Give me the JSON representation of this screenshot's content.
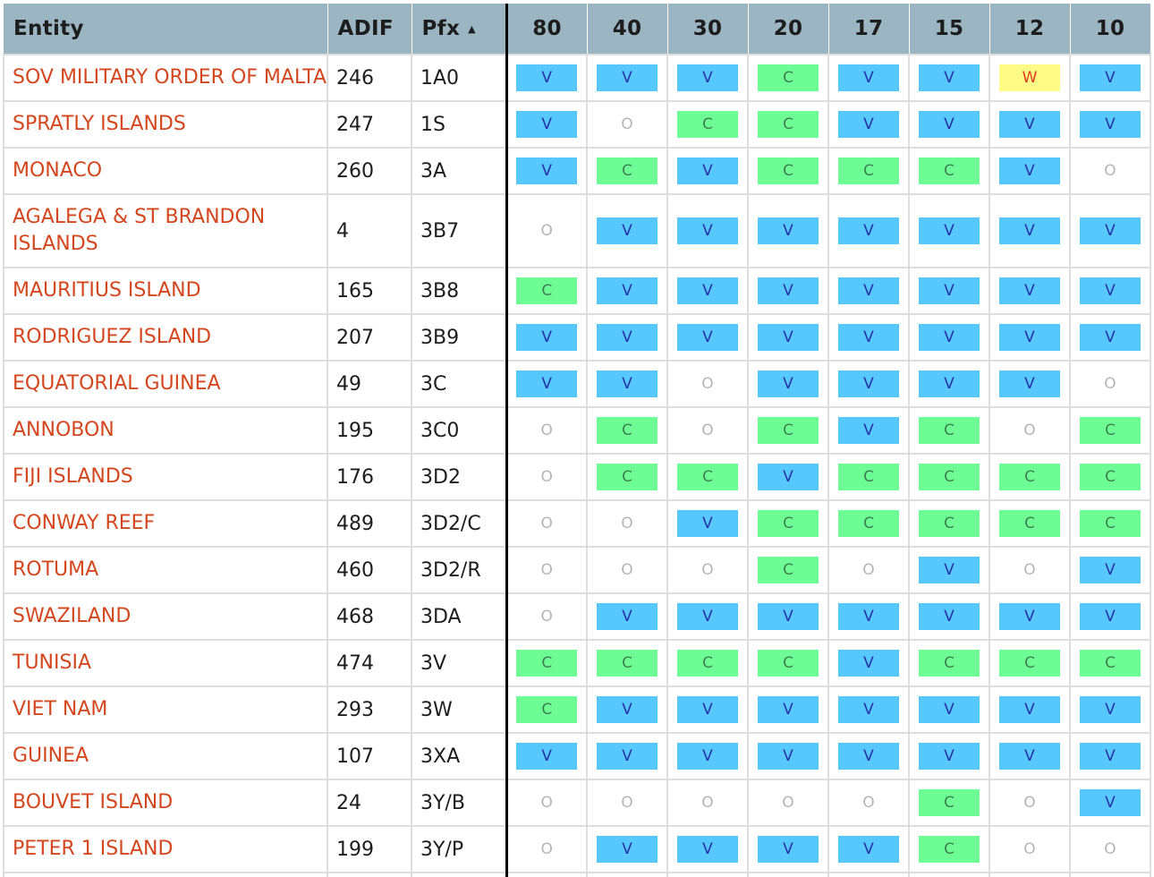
{
  "header": {
    "entity": "Entity",
    "adif": "ADIF",
    "pfx": "Pfx",
    "sort_indicator": "▲",
    "bands": [
      "80",
      "40",
      "30",
      "20",
      "17",
      "15",
      "12",
      "10"
    ]
  },
  "rows": [
    {
      "entity": "SOV MILITARY ORDER OF MALTA",
      "adif": "246",
      "pfx": "1A0",
      "bands": [
        "V",
        "V",
        "V",
        "C",
        "V",
        "V",
        "W",
        "V"
      ]
    },
    {
      "entity": "SPRATLY ISLANDS",
      "adif": "247",
      "pfx": "1S",
      "bands": [
        "V",
        "O",
        "C",
        "C",
        "V",
        "V",
        "V",
        "V"
      ]
    },
    {
      "entity": "MONACO",
      "adif": "260",
      "pfx": "3A",
      "bands": [
        "V",
        "C",
        "V",
        "C",
        "C",
        "C",
        "V",
        "O"
      ]
    },
    {
      "entity": "AGALEGA & ST BRANDON ISLANDS",
      "adif": "4",
      "pfx": "3B7",
      "bands": [
        "O",
        "V",
        "V",
        "V",
        "V",
        "V",
        "V",
        "V"
      ]
    },
    {
      "entity": "MAURITIUS ISLAND",
      "adif": "165",
      "pfx": "3B8",
      "bands": [
        "C",
        "V",
        "V",
        "V",
        "V",
        "V",
        "V",
        "V"
      ]
    },
    {
      "entity": "RODRIGUEZ ISLAND",
      "adif": "207",
      "pfx": "3B9",
      "bands": [
        "V",
        "V",
        "V",
        "V",
        "V",
        "V",
        "V",
        "V"
      ]
    },
    {
      "entity": "EQUATORIAL GUINEA",
      "adif": "49",
      "pfx": "3C",
      "bands": [
        "V",
        "V",
        "O",
        "V",
        "V",
        "V",
        "V",
        "O"
      ]
    },
    {
      "entity": "ANNOBON",
      "adif": "195",
      "pfx": "3C0",
      "bands": [
        "O",
        "C",
        "O",
        "C",
        "V",
        "C",
        "O",
        "C"
      ]
    },
    {
      "entity": "FIJI ISLANDS",
      "adif": "176",
      "pfx": "3D2",
      "bands": [
        "O",
        "C",
        "C",
        "V",
        "C",
        "C",
        "C",
        "C"
      ]
    },
    {
      "entity": "CONWAY REEF",
      "adif": "489",
      "pfx": "3D2/C",
      "bands": [
        "O",
        "O",
        "V",
        "C",
        "C",
        "C",
        "C",
        "C"
      ]
    },
    {
      "entity": "ROTUMA",
      "adif": "460",
      "pfx": "3D2/R",
      "bands": [
        "O",
        "O",
        "O",
        "C",
        "O",
        "V",
        "O",
        "V"
      ]
    },
    {
      "entity": "SWAZILAND",
      "adif": "468",
      "pfx": "3DA",
      "bands": [
        "O",
        "V",
        "V",
        "V",
        "V",
        "V",
        "V",
        "V"
      ]
    },
    {
      "entity": "TUNISIA",
      "adif": "474",
      "pfx": "3V",
      "bands": [
        "C",
        "C",
        "C",
        "C",
        "V",
        "C",
        "C",
        "C"
      ]
    },
    {
      "entity": "VIET NAM",
      "adif": "293",
      "pfx": "3W",
      "bands": [
        "C",
        "V",
        "V",
        "V",
        "V",
        "V",
        "V",
        "V"
      ]
    },
    {
      "entity": "GUINEA",
      "adif": "107",
      "pfx": "3XA",
      "bands": [
        "V",
        "V",
        "V",
        "V",
        "V",
        "V",
        "V",
        "V"
      ]
    },
    {
      "entity": "BOUVET ISLAND",
      "adif": "24",
      "pfx": "3Y/B",
      "bands": [
        "O",
        "O",
        "O",
        "O",
        "O",
        "C",
        "O",
        "V"
      ]
    },
    {
      "entity": "PETER 1 ISLAND",
      "adif": "199",
      "pfx": "3Y/P",
      "bands": [
        "O",
        "V",
        "V",
        "V",
        "V",
        "C",
        "O",
        "O"
      ]
    },
    {
      "entity": "",
      "adif": "",
      "pfx": "",
      "bands": [
        "",
        "",
        "",
        "",
        "",
        "",
        "",
        ""
      ]
    }
  ],
  "colors": {
    "header_bg": "#9cb5c2",
    "entity_text": "#d4471e",
    "V": "#56c8fb",
    "C": "#6efd95",
    "W": "#fdfa86"
  }
}
